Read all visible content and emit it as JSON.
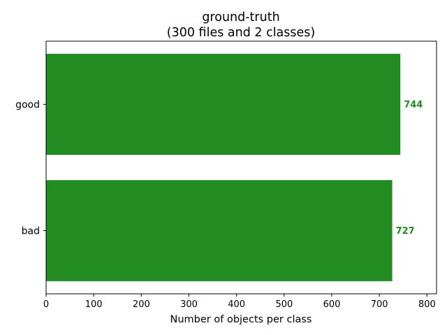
{
  "chart_data": {
    "type": "bar",
    "orientation": "horizontal",
    "title": "ground-truth",
    "subtitle": "(300 files and 2 classes)",
    "xlabel": "Number of objects per class",
    "ylabel": "",
    "categories": [
      "good",
      "bad"
    ],
    "values": [
      744,
      727
    ],
    "data_labels": [
      "744",
      "727"
    ],
    "xlim": [
      0,
      820
    ],
    "xticks": [
      0,
      100,
      200,
      300,
      400,
      500,
      600,
      700,
      800
    ],
    "grid": false,
    "legend": "none",
    "bar_color": "#228b22",
    "label_color": "#228b22"
  }
}
